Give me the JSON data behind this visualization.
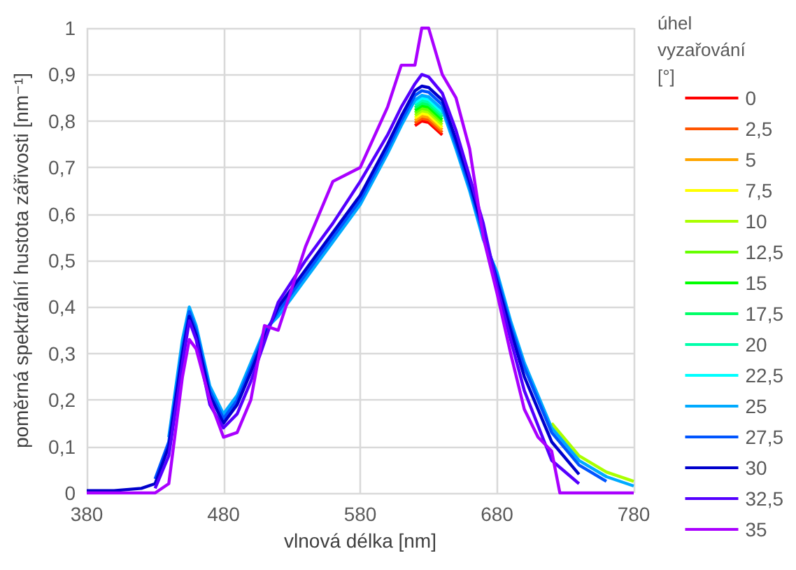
{
  "chart_data": {
    "type": "line",
    "xlabel": "vlnová délka [nm]",
    "ylabel": "poměrná spektrální hustota zářivosti [nm⁻¹]",
    "legend_title": "úhel vyzařování [°]",
    "legend": "right",
    "grid": true,
    "marker": "none",
    "line_style": "solid",
    "xlim": [
      380,
      780
    ],
    "xticks": [
      380,
      480,
      580,
      680,
      780
    ],
    "ylim": [
      0,
      1
    ],
    "yticks": [
      0,
      {
        "value": 0.1,
        "label": "0,1"
      },
      {
        "value": 0.2,
        "label": "0,2"
      },
      {
        "value": 0.3,
        "label": "0,3"
      },
      {
        "value": 0.4,
        "label": "0,4"
      },
      {
        "value": 0.5,
        "label": "0,5"
      },
      {
        "value": 0.6,
        "label": "0,6"
      },
      {
        "value": 0.7,
        "label": "0,7"
      },
      {
        "value": 0.8,
        "label": "0,8"
      },
      {
        "value": 0.9,
        "label": "0,9"
      },
      1
    ],
    "x": [
      380,
      400,
      420,
      430,
      440,
      450,
      455,
      460,
      470,
      480,
      490,
      500,
      510,
      520,
      540,
      560,
      580,
      600,
      610,
      620,
      625,
      630,
      640,
      650,
      660,
      670,
      680,
      690,
      700,
      720,
      740,
      760,
      780
    ],
    "series": [
      {
        "name": "0",
        "color": "#ff0000",
        "values": [
          null,
          null,
          null,
          null,
          null,
          null,
          null,
          null,
          null,
          null,
          null,
          null,
          null,
          null,
          null,
          null,
          null,
          null,
          null,
          0.79,
          0.8,
          0.797,
          0.77,
          null,
          null,
          null,
          null,
          null,
          null,
          null,
          null,
          null,
          null
        ]
      },
      {
        "name": "2,5",
        "color": "#ff5500",
        "values": [
          null,
          null,
          null,
          null,
          null,
          null,
          null,
          null,
          null,
          null,
          null,
          null,
          null,
          null,
          null,
          null,
          null,
          null,
          null,
          0.7955,
          0.8055,
          0.8025,
          0.7755,
          null,
          null,
          null,
          null,
          null,
          null,
          null,
          null,
          null,
          null
        ]
      },
      {
        "name": "5",
        "color": "#ffa500",
        "values": [
          null,
          null,
          null,
          null,
          null,
          null,
          null,
          null,
          null,
          null,
          null,
          null,
          null,
          null,
          null,
          null,
          null,
          null,
          null,
          0.801,
          0.811,
          0.808,
          0.781,
          null,
          null,
          null,
          null,
          null,
          null,
          null,
          null,
          null,
          null
        ]
      },
      {
        "name": "7,5",
        "color": "#ffff00",
        "values": [
          null,
          null,
          null,
          null,
          null,
          null,
          null,
          null,
          null,
          null,
          null,
          null,
          null,
          null,
          null,
          null,
          null,
          null,
          null,
          0.8065,
          0.8165,
          0.8135,
          0.7865,
          null,
          null,
          null,
          null,
          null,
          null,
          null,
          null,
          null,
          null
        ]
      },
      {
        "name": "10",
        "color": "#aaff00",
        "values": [
          null,
          null,
          null,
          null,
          null,
          null,
          null,
          null,
          null,
          null,
          null,
          null,
          null,
          null,
          null,
          null,
          null,
          null,
          null,
          0.812,
          0.822,
          0.819,
          0.792,
          null,
          null,
          null,
          null,
          null,
          null,
          0.15,
          0.08,
          0.045,
          0.025
        ]
      },
      {
        "name": "12,5",
        "color": "#66ff00",
        "values": [
          null,
          null,
          null,
          null,
          null,
          null,
          null,
          null,
          null,
          null,
          null,
          null,
          null,
          null,
          null,
          null,
          null,
          null,
          null,
          0.8175,
          0.8275,
          0.8245,
          0.7975,
          null,
          null,
          null,
          null,
          null,
          null,
          null,
          null,
          null,
          null
        ]
      },
      {
        "name": "15",
        "color": "#00ff00",
        "values": [
          null,
          null,
          null,
          null,
          null,
          null,
          null,
          null,
          null,
          null,
          null,
          null,
          null,
          null,
          null,
          null,
          null,
          null,
          null,
          0.823,
          0.833,
          0.83,
          0.803,
          null,
          null,
          null,
          null,
          null,
          null,
          null,
          null,
          null,
          null
        ]
      },
      {
        "name": "17,5",
        "color": "#00ff66",
        "values": [
          null,
          null,
          null,
          null,
          null,
          null,
          null,
          null,
          null,
          null,
          null,
          null,
          null,
          null,
          null,
          null,
          null,
          null,
          null,
          0.8285,
          0.8385,
          0.8355,
          0.8085,
          null,
          null,
          null,
          null,
          null,
          null,
          null,
          null,
          null,
          null
        ]
      },
      {
        "name": "20",
        "color": "#00ffaa",
        "values": [
          null,
          null,
          null,
          null,
          null,
          null,
          null,
          null,
          null,
          null,
          null,
          null,
          null,
          null,
          null,
          null,
          null,
          null,
          null,
          0.834,
          0.844,
          0.841,
          0.814,
          null,
          null,
          null,
          null,
          null,
          null,
          null,
          null,
          null,
          null
        ]
      },
      {
        "name": "22,5",
        "color": "#00ffff",
        "values": [
          null,
          null,
          null,
          null,
          null,
          null,
          null,
          null,
          null,
          null,
          null,
          null,
          null,
          null,
          null,
          null,
          null,
          null,
          null,
          0.8395,
          0.8495,
          0.8465,
          0.8195,
          null,
          null,
          null,
          null,
          null,
          null,
          null,
          null,
          null,
          null
        ]
      },
      {
        "name": "25",
        "color": "#00aaff",
        "values": [
          null,
          null,
          null,
          null,
          0.12,
          0.33,
          0.4,
          0.36,
          0.23,
          0.17,
          0.21,
          0.28,
          0.35,
          0.38,
          0.46,
          0.54,
          0.62,
          0.73,
          0.79,
          0.845,
          0.855,
          0.852,
          0.825,
          0.74,
          0.65,
          0.545,
          0.475,
          0.37,
          0.28,
          0.14,
          0.07,
          0.035,
          0.015
        ]
      },
      {
        "name": "27,5",
        "color": "#0055ff",
        "values": [
          null,
          null,
          null,
          0.03,
          0.11,
          0.31,
          0.39,
          0.35,
          0.22,
          0.16,
          0.2,
          0.27,
          0.345,
          0.39,
          0.47,
          0.55,
          0.63,
          0.74,
          0.8,
          0.855,
          0.865,
          0.862,
          0.835,
          0.75,
          0.66,
          0.555,
          0.465,
          0.36,
          0.27,
          0.13,
          0.06,
          0.025,
          null
        ]
      },
      {
        "name": "30",
        "color": "#0000cc",
        "values": [
          0.005,
          0.005,
          0.01,
          0.02,
          0.1,
          0.3,
          0.38,
          0.34,
          0.21,
          0.15,
          0.19,
          0.26,
          0.335,
          0.4,
          0.48,
          0.56,
          0.64,
          0.75,
          0.81,
          0.865,
          0.875,
          0.872,
          0.845,
          0.76,
          0.67,
          0.565,
          0.455,
          0.35,
          0.25,
          0.11,
          0.04,
          null,
          null
        ]
      },
      {
        "name": "32,5",
        "color": "#5500ff",
        "values": [
          null,
          null,
          null,
          0.01,
          0.08,
          0.28,
          0.37,
          0.33,
          0.19,
          0.14,
          0.17,
          0.24,
          0.325,
          0.41,
          0.5,
          0.58,
          0.67,
          0.77,
          0.83,
          0.88,
          0.9,
          0.895,
          0.86,
          0.78,
          0.68,
          0.58,
          0.445,
          0.33,
          0.22,
          0.07,
          0.02,
          null,
          null
        ]
      },
      {
        "name": "35",
        "color": "#aa00ff",
        "x": [
          380,
          400,
          420,
          430,
          440,
          450,
          455,
          460,
          470,
          480,
          490,
          500,
          510,
          520,
          540,
          560,
          580,
          600,
          610,
          620,
          625,
          630,
          640,
          650,
          660,
          670,
          680,
          690,
          700,
          710,
          720,
          726,
          740,
          760,
          780
        ],
        "values": [
          0,
          0,
          0,
          0,
          0.02,
          0.25,
          0.33,
          0.31,
          0.2,
          0.12,
          0.13,
          0.2,
          0.36,
          0.35,
          0.53,
          0.67,
          0.7,
          0.83,
          0.92,
          0.92,
          1,
          1,
          0.9,
          0.85,
          0.74,
          0.55,
          0.43,
          0.3,
          0.18,
          0.12,
          0.09,
          0,
          0,
          0,
          0
        ]
      }
    ]
  }
}
